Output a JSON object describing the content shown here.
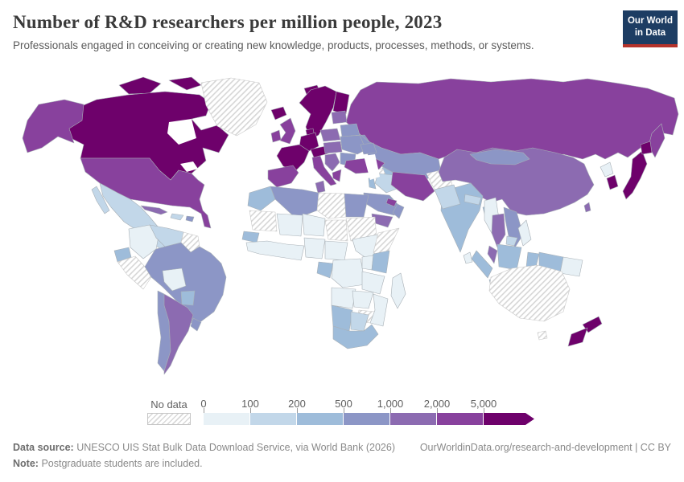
{
  "header": {
    "title": "Number of R&D researchers per million people, 2023",
    "subtitle": "Professionals engaged in conceiving or creating new knowledge, products, processes, methods, or systems."
  },
  "logo": {
    "line1": "Our World",
    "line2": "in Data",
    "bg_color": "#1d3d63",
    "accent_color": "#b5332b"
  },
  "chart_data": {
    "type": "choropleth",
    "title": "Number of R&D researchers per million people, 2023",
    "year": 2023,
    "unit": "R&D researchers per million people",
    "legend": {
      "no_data_label": "No data",
      "tick_labels": [
        "0",
        "100",
        "200",
        "500",
        "1,000",
        "2,000",
        "5,000"
      ],
      "bins": [
        {
          "range": "0-100",
          "color": "#e8f1f6"
        },
        {
          "range": "100-200",
          "color": "#c2d7e9"
        },
        {
          "range": "200-500",
          "color": "#9ebcda"
        },
        {
          "range": "500-1000",
          "color": "#8c96c6"
        },
        {
          "range": "1000-2000",
          "color": "#8c6bb1"
        },
        {
          "range": "2000-5000",
          "color": "#88419d"
        },
        {
          "range": "5000+",
          "color": "#6e016b"
        }
      ]
    },
    "countries": {
      "canada": "5000+",
      "usa": "2000-5000",
      "greenland": "no-data",
      "mexico": "100-200",
      "central-america": "100-200",
      "cuba": "1000-2000",
      "hispaniola": "100-200",
      "puerto-rico": "500-1000",
      "colombia": "0-100",
      "venezuela": "100-200",
      "guyanas": "no-data",
      "ecuador": "200-500",
      "peru": "no-data",
      "brazil": "500-1000",
      "bolivia": "0-100",
      "paraguay": "200-500",
      "chile": "500-1000",
      "argentina": "1000-2000",
      "uruguay": "500-1000",
      "iceland": "5000+",
      "norway-sweden": "5000+",
      "finland": "5000+",
      "denmark": "5000+",
      "united-kingdom": "2000-5000",
      "ireland": "2000-5000",
      "germany": "5000+",
      "france": "5000+",
      "spain-portugal": "2000-5000",
      "italy": "2000-5000",
      "switzerland-austria": "5000+",
      "poland": "1000-2000",
      "czechia-hungary": "1000-2000",
      "balkans": "1000-2000",
      "greece": "2000-5000",
      "romania-bulgaria": "500-1000",
      "ukraine": "500-1000",
      "belarus": "500-1000",
      "baltics": "1000-2000",
      "russia": "2000-5000",
      "kazakhstan": "500-1000",
      "central-asia": "200-500",
      "caucasus": "500-1000",
      "turkey": "2000-5000",
      "syria": "no-data",
      "iraq": "100-200",
      "israel-jordan": "200-500",
      "iran": "2000-5000",
      "saudi-arabia": "500-1000",
      "uae": "2000-5000",
      "oman": "500-1000",
      "yemen": "1000-2000",
      "afghanistan": "no-data",
      "pakistan": "100-200",
      "india": "200-500",
      "nepal": "100-200",
      "bangladesh": "200-500",
      "sri-lanka": "0-100",
      "myanmar": "0-100",
      "thailand": "1000-2000",
      "vietnam": "500-1000",
      "cambodia": "100-200",
      "malaysia": "1000-2000",
      "indonesia": "200-500",
      "philippines": "0-100",
      "papua-new-guinea": "0-100",
      "china": "1000-2000",
      "mongolia": "500-1000",
      "north-korea": "0-100",
      "south-korea": "5000+",
      "japan": "5000+",
      "taiwan": "1000-2000",
      "morocco": "200-500",
      "algeria": "500-1000",
      "tunisia": "1000-2000",
      "libya": "no-data",
      "egypt": "500-1000",
      "mauritania": "no-data",
      "mali": "0-100",
      "niger": "0-100",
      "chad": "no-data",
      "sudan": "no-data",
      "ethiopia": "0-100",
      "somalia": "no-data",
      "senegal": "200-500",
      "west-africa": "0-100",
      "nigeria": "0-100",
      "cameroon": "0-100",
      "gabon-congo": "200-500",
      "drc": "0-100",
      "uganda": "0-100",
      "kenya": "200-500",
      "tanzania": "0-100",
      "angola": "0-100",
      "zambia": "0-100",
      "zimbabwe": "no-data",
      "mozambique": "0-100",
      "namibia": "200-500",
      "botswana": "100-200",
      "south-africa": "200-500",
      "madagascar": "0-100",
      "australia": "no-data",
      "new-zealand": "5000+"
    }
  },
  "footer": {
    "source_label": "Data source:",
    "source_text": "UNESCO UIS Stat Bulk Data Download Service, via World Bank (2026)",
    "link_text": "OurWorldinData.org/research-and-development | CC BY",
    "note_label": "Note:",
    "note_text": "Postgraduate students are included."
  }
}
